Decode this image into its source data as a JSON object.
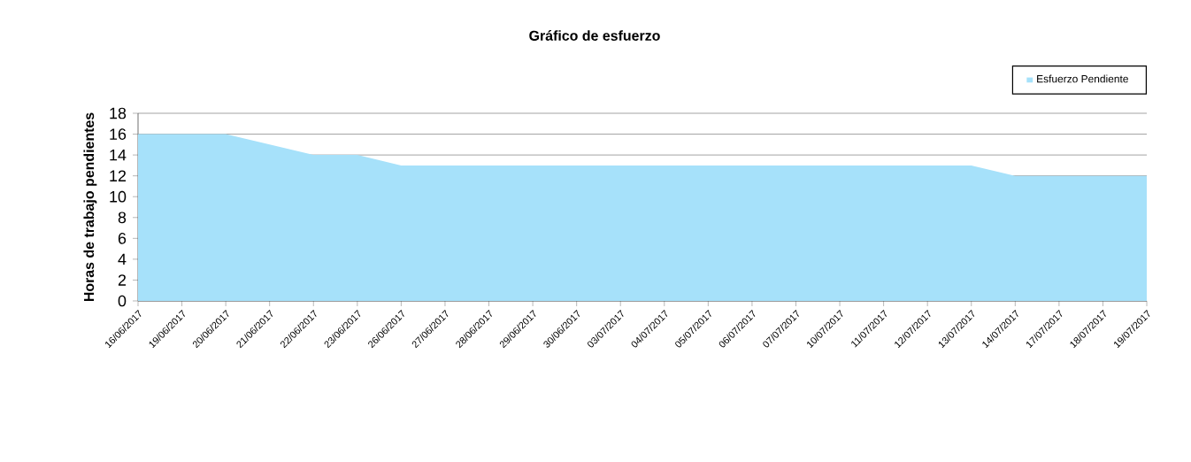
{
  "chart_data": {
    "type": "area",
    "title": "Gráfico de esfuerzo",
    "ylabel": "Horas de trabajo pendientes",
    "categories": [
      "16/06/2017",
      "19/06/2017",
      "20/06/2017",
      "21/06/2017",
      "22/06/2017",
      "23/06/2017",
      "26/06/2017",
      "27/06/2017",
      "28/06/2017",
      "29/06/2017",
      "30/06/2017",
      "03/07/2017",
      "04/07/2017",
      "05/07/2017",
      "06/07/2017",
      "07/07/2017",
      "10/07/2017",
      "11/07/2017",
      "12/07/2017",
      "13/07/2017",
      "14/07/2017",
      "17/07/2017",
      "18/07/2017",
      "19/07/2017"
    ],
    "series": [
      {
        "name": "Esfuerzo Pendiente",
        "color": "#a6e1fa",
        "values": [
          16,
          16,
          16,
          15,
          14,
          14,
          13,
          13,
          13,
          13,
          13,
          13,
          13,
          13,
          13,
          13,
          13,
          13,
          13,
          13,
          12,
          12,
          12,
          12
        ]
      }
    ],
    "ylim": [
      0,
      18
    ],
    "yticks": [
      0,
      2,
      4,
      6,
      8,
      10,
      12,
      14,
      16,
      18
    ],
    "grid": "y",
    "legend": "top right"
  }
}
